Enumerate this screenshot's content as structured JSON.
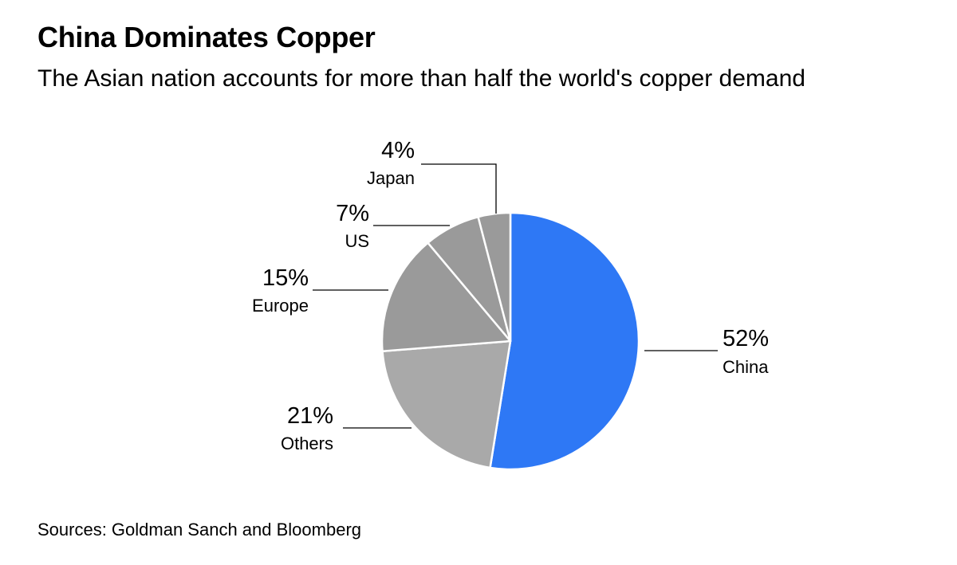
{
  "chart_data": {
    "type": "pie",
    "title": "China Dominates Copper",
    "subtitle": "The Asian nation accounts for more than half the world's copper demand",
    "source": "Sources: Goldman Sanch and Bloomberg",
    "slices": [
      {
        "name": "China",
        "value": 52,
        "label": "52%",
        "color": "#2E78F5"
      },
      {
        "name": "Others",
        "value": 21,
        "label": "21%",
        "color": "#A9A9A9"
      },
      {
        "name": "Europe",
        "value": 15,
        "label": "15%",
        "color": "#9A9A9A"
      },
      {
        "name": "US",
        "value": 7,
        "label": "7%",
        "color": "#9A9A9A"
      },
      {
        "name": "Japan",
        "value": 4,
        "label": "4%",
        "color": "#9A9A9A"
      }
    ]
  }
}
